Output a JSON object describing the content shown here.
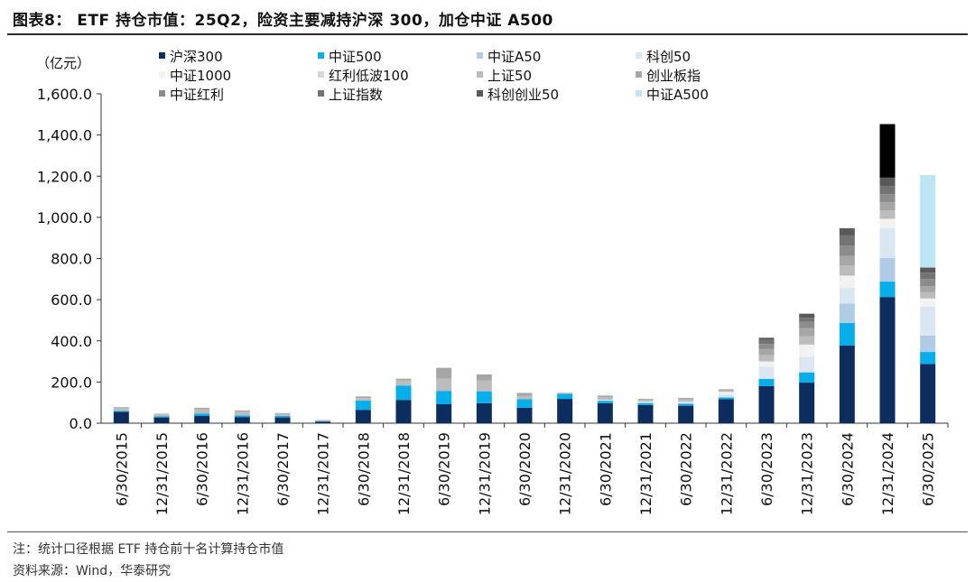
{
  "title": "图表8： ETF 持仓市值：25Q2，险资主要减持沪深 300，加仓中证 A500",
  "note": "注：统计口径根据 ETF 持仓前十名计算持仓市值",
  "source": "资料来源：Wind，华泰研究",
  "chart_data": {
    "type": "bar",
    "stacked": true,
    "unit_label": "（亿元）",
    "ylim": [
      0,
      1600
    ],
    "yticks": [
      "0.0",
      "200.0",
      "400.0",
      "600.0",
      "800.0",
      "1,000.0",
      "1,200.0",
      "1,400.0",
      "1,600.0"
    ],
    "grid": false,
    "legend_position": "top",
    "categories": [
      "6/30/2015",
      "12/31/2015",
      "6/30/2016",
      "12/31/2016",
      "6/30/2017",
      "12/31/2017",
      "6/30/2018",
      "12/31/2018",
      "6/30/2019",
      "12/31/2019",
      "6/30/2020",
      "12/31/2020",
      "6/30/2021",
      "12/31/2021",
      "6/30/2022",
      "12/31/2022",
      "6/30/2023",
      "12/31/2023",
      "6/30/2024",
      "12/31/2024",
      "6/30/2025"
    ],
    "series": [
      {
        "name": "沪深300",
        "color": "#0d2d5e",
        "values": [
          55,
          28,
          35,
          30,
          28,
          8,
          65,
          113,
          92,
          97,
          75,
          118,
          97,
          88,
          85,
          117,
          180,
          197,
          377,
          613,
          288
        ]
      },
      {
        "name": "中证500",
        "color": "#08aeea",
        "values": [
          5,
          5,
          12,
          8,
          8,
          2,
          45,
          70,
          65,
          58,
          42,
          25,
          12,
          10,
          10,
          8,
          35,
          50,
          110,
          75,
          58
        ]
      },
      {
        "name": "中证A50",
        "color": "#b0cbe6",
        "values": [
          0,
          0,
          0,
          0,
          0,
          0,
          0,
          0,
          0,
          0,
          0,
          0,
          0,
          0,
          0,
          0,
          0,
          0,
          95,
          115,
          80
        ]
      },
      {
        "name": "科创50",
        "color": "#dbe6f3",
        "values": [
          0,
          0,
          0,
          0,
          0,
          0,
          0,
          0,
          0,
          0,
          0,
          0,
          5,
          8,
          10,
          15,
          60,
          75,
          75,
          145,
          140
        ]
      },
      {
        "name": "中证1000",
        "color": "#f2f2f2",
        "values": [
          0,
          0,
          0,
          0,
          0,
          0,
          0,
          0,
          0,
          0,
          0,
          0,
          0,
          0,
          0,
          12,
          25,
          60,
          60,
          45,
          40
        ]
      },
      {
        "name": "红利低波100",
        "color": "#d6d6d6",
        "values": [
          0,
          0,
          0,
          0,
          0,
          0,
          0,
          0,
          0,
          0,
          0,
          0,
          0,
          0,
          0,
          0,
          0,
          0,
          0,
          0,
          0
        ]
      },
      {
        "name": "上证50",
        "color": "#bcbcbc",
        "values": [
          13,
          10,
          20,
          18,
          10,
          5,
          12,
          25,
          60,
          52,
          15,
          3,
          12,
          8,
          10,
          8,
          30,
          40,
          50,
          40,
          30
        ]
      },
      {
        "name": "创业板指",
        "color": "#a6a6a6",
        "values": [
          5,
          3,
          8,
          6,
          3,
          1,
          8,
          8,
          52,
          30,
          15,
          2,
          8,
          4,
          8,
          5,
          30,
          40,
          45,
          40,
          30
        ]
      },
      {
        "name": "中证红利",
        "color": "#8c8c8c",
        "values": [
          0,
          0,
          0,
          0,
          0,
          0,
          0,
          0,
          0,
          0,
          0,
          0,
          0,
          0,
          0,
          0,
          25,
          30,
          50,
          40,
          35
        ]
      },
      {
        "name": "上证指数",
        "color": "#737373",
        "values": [
          0,
          0,
          0,
          0,
          0,
          0,
          0,
          0,
          0,
          0,
          0,
          0,
          0,
          0,
          0,
          0,
          20,
          20,
          50,
          40,
          30
        ]
      },
      {
        "name": "科创创业50",
        "color": "#595959",
        "values": [
          0,
          0,
          0,
          0,
          0,
          0,
          0,
          0,
          0,
          0,
          0,
          0,
          0,
          0,
          0,
          0,
          10,
          20,
          35,
          40,
          25
        ]
      },
      {
        "name": "中证A500",
        "color": "#bde6f4",
        "values": [
          0,
          0,
          0,
          0,
          0,
          0,
          0,
          0,
          0,
          0,
          0,
          0,
          0,
          0,
          0,
          0,
          0,
          0,
          0,
          0,
          450
        ]
      },
      {
        "name": "",
        "color": "#000000",
        "values": [
          0,
          0,
          0,
          0,
          0,
          0,
          0,
          0,
          0,
          0,
          0,
          0,
          0,
          0,
          0,
          0,
          0,
          0,
          0,
          260,
          0
        ]
      }
    ]
  }
}
